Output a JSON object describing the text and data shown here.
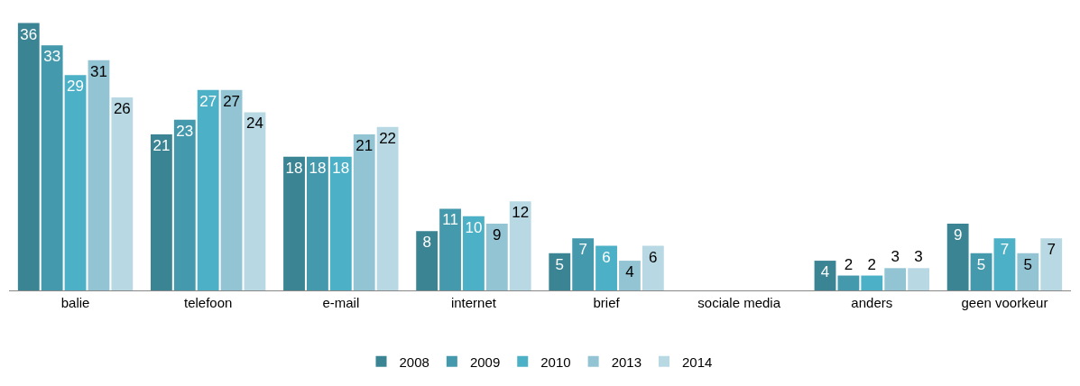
{
  "chart_data": {
    "type": "bar",
    "categories": [
      "balie",
      "telefoon",
      "e-mail",
      "internet",
      "brief",
      "sociale media",
      "anders",
      "geen voorkeur"
    ],
    "series": [
      {
        "name": "2008",
        "color": "#3b8494",
        "values": [
          36,
          21,
          18,
          8,
          5,
          null,
          4,
          9
        ]
      },
      {
        "name": "2009",
        "color": "#4499ad",
        "values": [
          33,
          23,
          18,
          11,
          7,
          null,
          2,
          5
        ]
      },
      {
        "name": "2010",
        "color": "#4cb0c6",
        "values": [
          29,
          27,
          18,
          10,
          6,
          null,
          2,
          7
        ]
      },
      {
        "name": "2013",
        "color": "#93c4d4",
        "values": [
          31,
          27,
          21,
          9,
          4,
          null,
          3,
          5
        ]
      },
      {
        "name": "2014",
        "color": "#b8d9e4",
        "values": [
          26,
          24,
          22,
          12,
          6,
          null,
          3,
          7
        ]
      }
    ],
    "data_labels": true,
    "legend": "bottom"
  }
}
